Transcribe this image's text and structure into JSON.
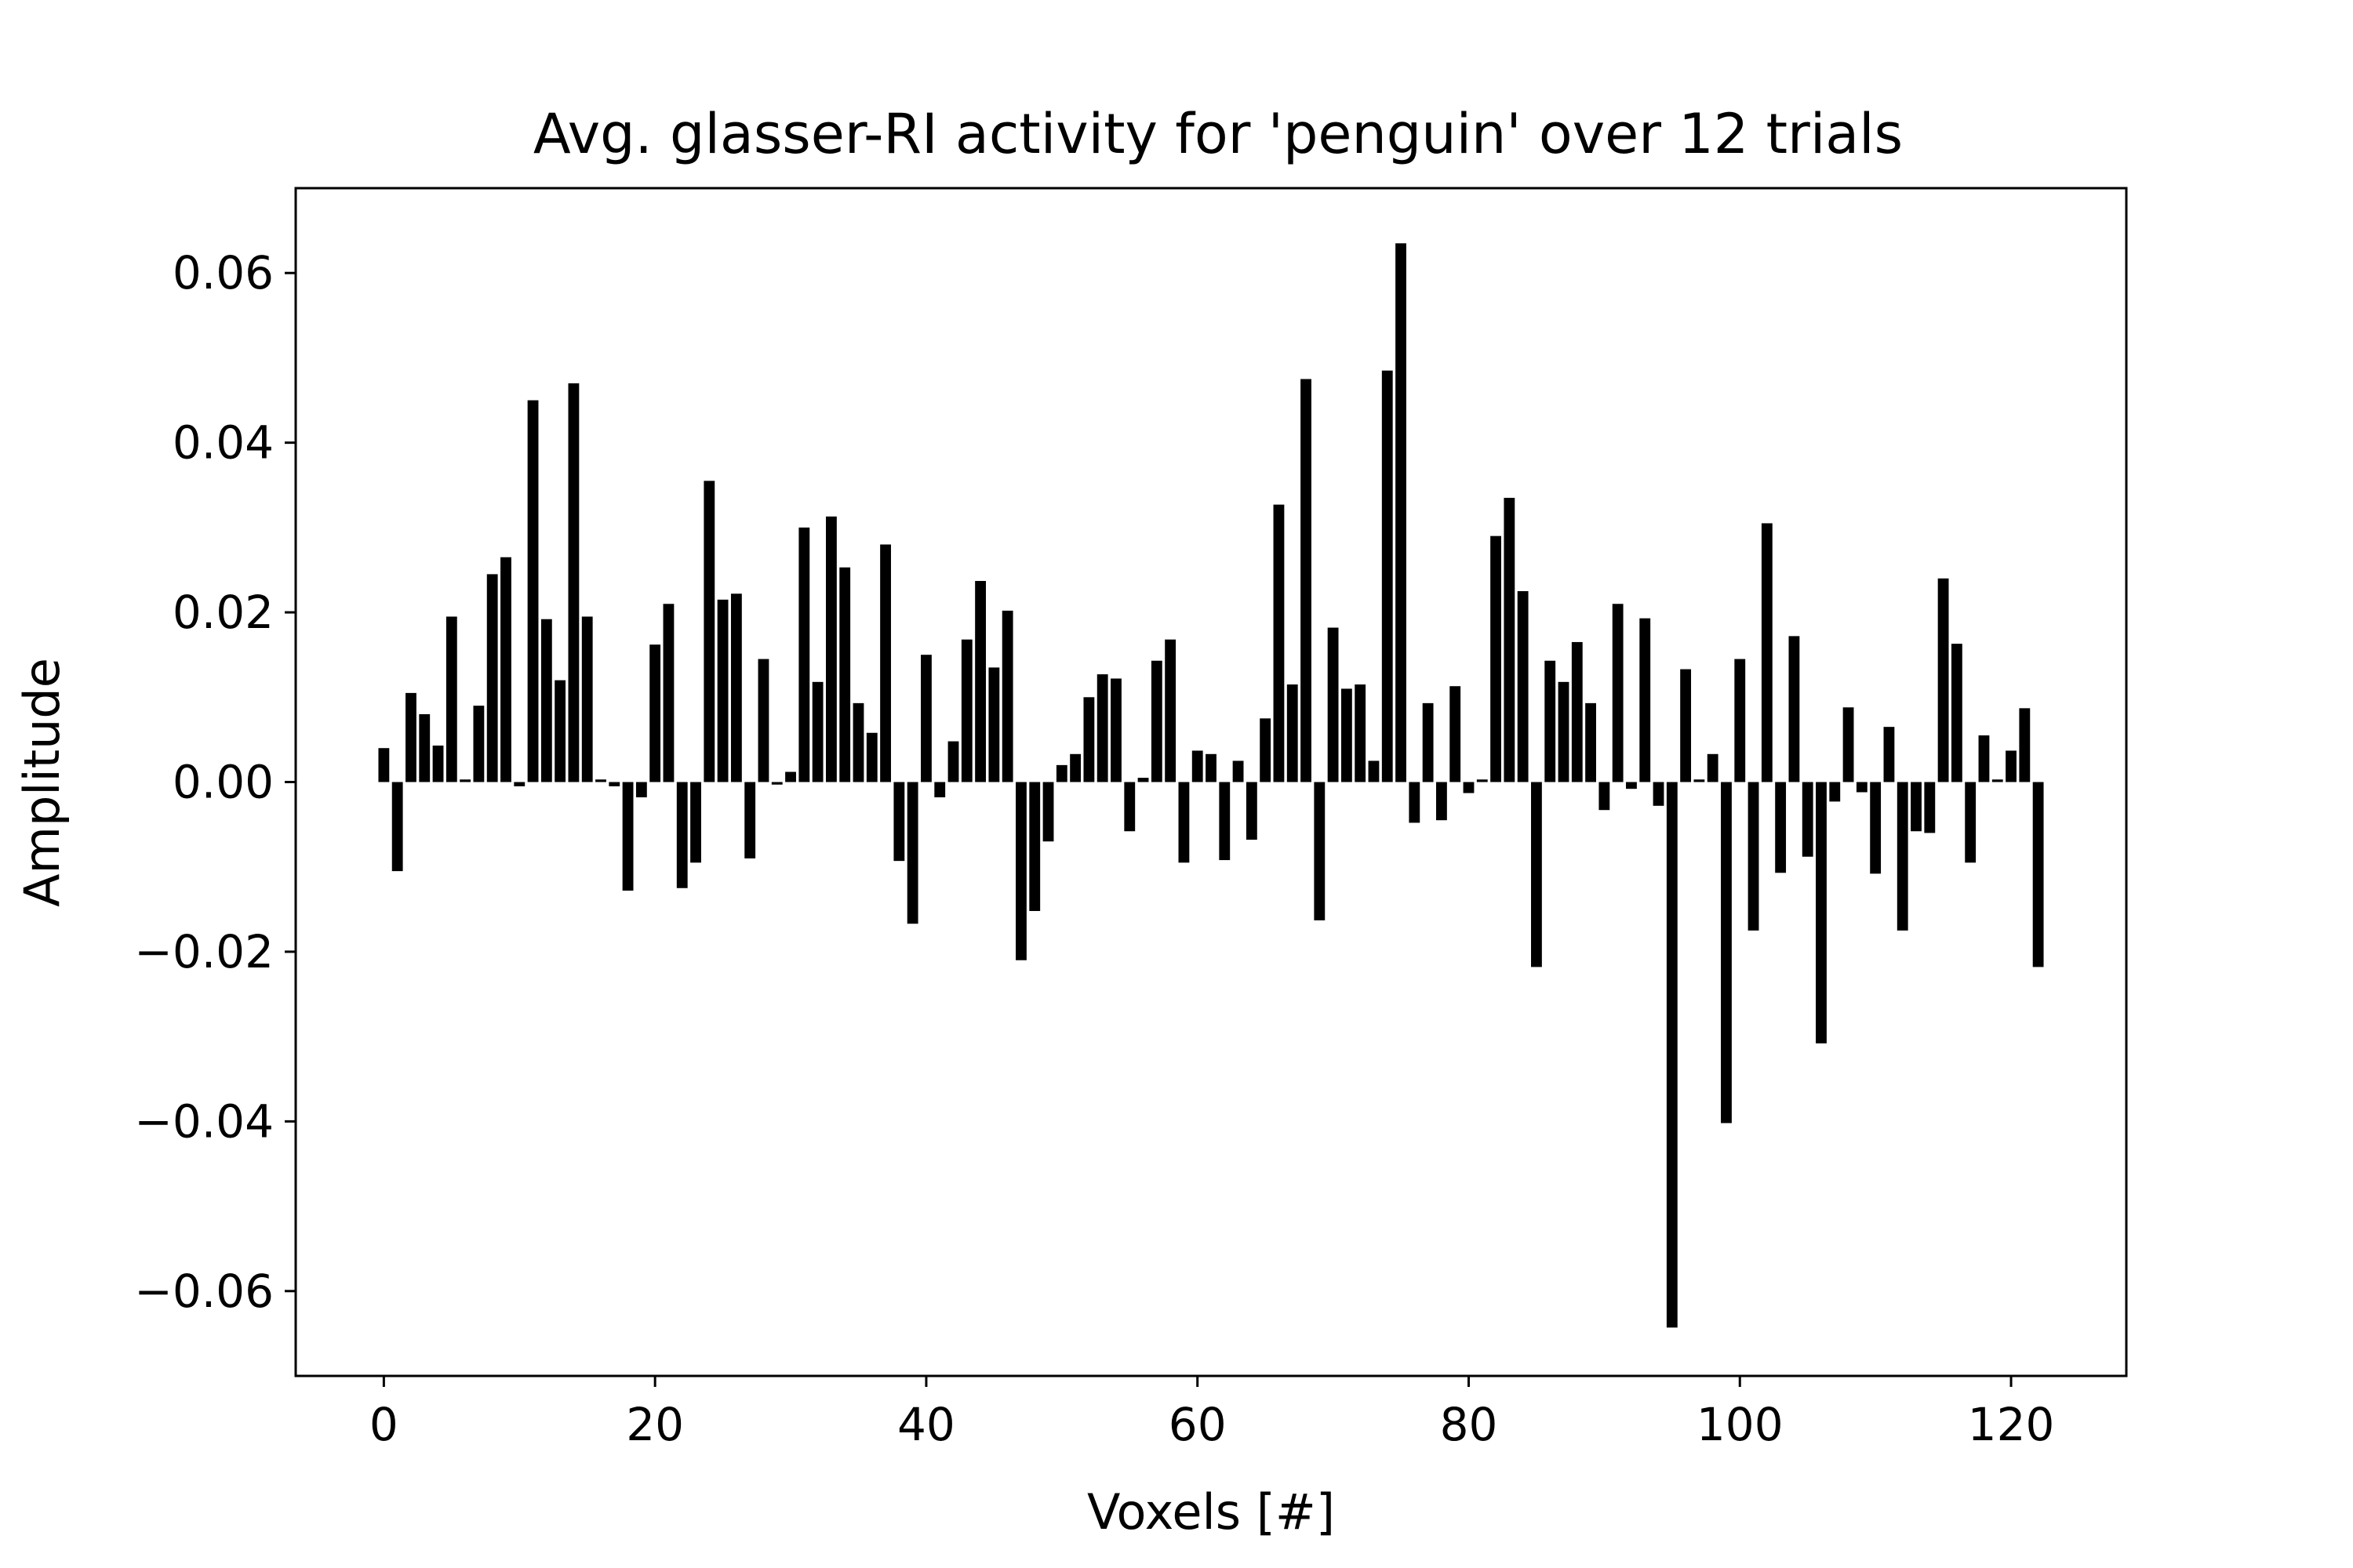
{
  "chart_data": {
    "type": "bar",
    "title": "Avg. glasser-RI activity for 'penguin' over 12 trials",
    "xlabel": "Voxels [#]",
    "ylabel": "Amplitude",
    "xlim": [
      -6.5,
      128.5
    ],
    "ylim": [
      -0.07,
      0.07
    ],
    "grid": false,
    "legend": "none",
    "bar_color": "#000000",
    "xticks": [
      {
        "value": 0,
        "label": "0"
      },
      {
        "value": 20,
        "label": "20"
      },
      {
        "value": 40,
        "label": "40"
      },
      {
        "value": 60,
        "label": "60"
      },
      {
        "value": 80,
        "label": "80"
      },
      {
        "value": 100,
        "label": "100"
      },
      {
        "value": 120,
        "label": "120"
      }
    ],
    "yticks": [
      {
        "value": 0.06,
        "label": "0.06"
      },
      {
        "value": 0.04,
        "label": "0.04"
      },
      {
        "value": 0.02,
        "label": "0.02"
      },
      {
        "value": 0.0,
        "label": "0.00"
      },
      {
        "value": -0.02,
        "label": "−0.02"
      },
      {
        "value": -0.04,
        "label": "−0.04"
      },
      {
        "value": -0.06,
        "label": "−0.06"
      }
    ],
    "x": [
      0,
      1,
      2,
      3,
      4,
      5,
      6,
      7,
      8,
      9,
      10,
      11,
      12,
      13,
      14,
      15,
      16,
      17,
      18,
      19,
      20,
      21,
      22,
      23,
      24,
      25,
      26,
      27,
      28,
      29,
      30,
      31,
      32,
      33,
      34,
      35,
      36,
      37,
      38,
      39,
      40,
      41,
      42,
      43,
      44,
      45,
      46,
      47,
      48,
      49,
      50,
      51,
      52,
      53,
      54,
      55,
      56,
      57,
      58,
      59,
      60,
      61,
      62,
      63,
      64,
      65,
      66,
      67,
      68,
      69,
      70,
      71,
      72,
      73,
      74,
      75,
      76,
      77,
      78,
      79,
      80,
      81,
      82,
      83,
      84,
      85,
      86,
      87,
      88,
      89,
      90,
      91,
      92,
      93,
      94,
      95,
      96,
      97,
      98,
      99,
      100,
      101,
      102,
      103,
      104,
      105,
      106,
      107,
      108,
      109,
      110,
      111,
      112,
      113,
      114,
      115,
      116,
      117,
      118,
      119,
      120,
      121,
      122
    ],
    "values": [
      0.004,
      -0.0105,
      0.0105,
      0.008,
      0.0043,
      0.0195,
      0.0003,
      0.009,
      0.0245,
      0.0265,
      -0.0005,
      0.045,
      0.0192,
      0.012,
      0.047,
      0.0195,
      0.0003,
      -0.0005,
      -0.0128,
      -0.0018,
      0.0162,
      0.021,
      -0.0125,
      -0.0095,
      0.0355,
      0.0215,
      0.0222,
      -0.009,
      0.0145,
      -0.0003,
      0.0012,
      0.03,
      0.0118,
      0.0313,
      0.0253,
      0.0093,
      0.0058,
      0.028,
      -0.0093,
      -0.0167,
      0.015,
      -0.0018,
      0.0048,
      0.0168,
      0.0237,
      0.0135,
      0.0202,
      -0.021,
      -0.0152,
      -0.007,
      0.002,
      0.0033,
      0.01,
      0.0127,
      0.0122,
      -0.0058,
      0.0005,
      0.0143,
      0.0168,
      -0.0095,
      0.0037,
      0.0033,
      -0.0092,
      0.0025,
      -0.0068,
      0.0075,
      0.0327,
      0.0115,
      0.0475,
      -0.0163,
      0.0182,
      0.011,
      0.0115,
      0.0025,
      0.0485,
      0.0635,
      -0.0048,
      0.0093,
      -0.0045,
      0.0113,
      -0.0013,
      0.0003,
      0.029,
      0.0335,
      0.0225,
      -0.0218,
      0.0143,
      0.0118,
      0.0165,
      0.0093,
      -0.0033,
      0.021,
      -0.0008,
      0.0193,
      -0.0028,
      -0.0643,
      0.0133,
      0.0003,
      0.0033,
      -0.0402,
      0.0145,
      -0.0175,
      0.0305,
      -0.0107,
      0.0172,
      -0.0088,
      -0.0308,
      -0.0023,
      0.0088,
      -0.0012,
      -0.0108,
      0.0065,
      -0.0175,
      -0.0058,
      -0.006,
      0.024,
      0.0163,
      -0.0095,
      0.0055,
      0.0003,
      0.0037,
      0.0087,
      -0.0218
    ]
  }
}
